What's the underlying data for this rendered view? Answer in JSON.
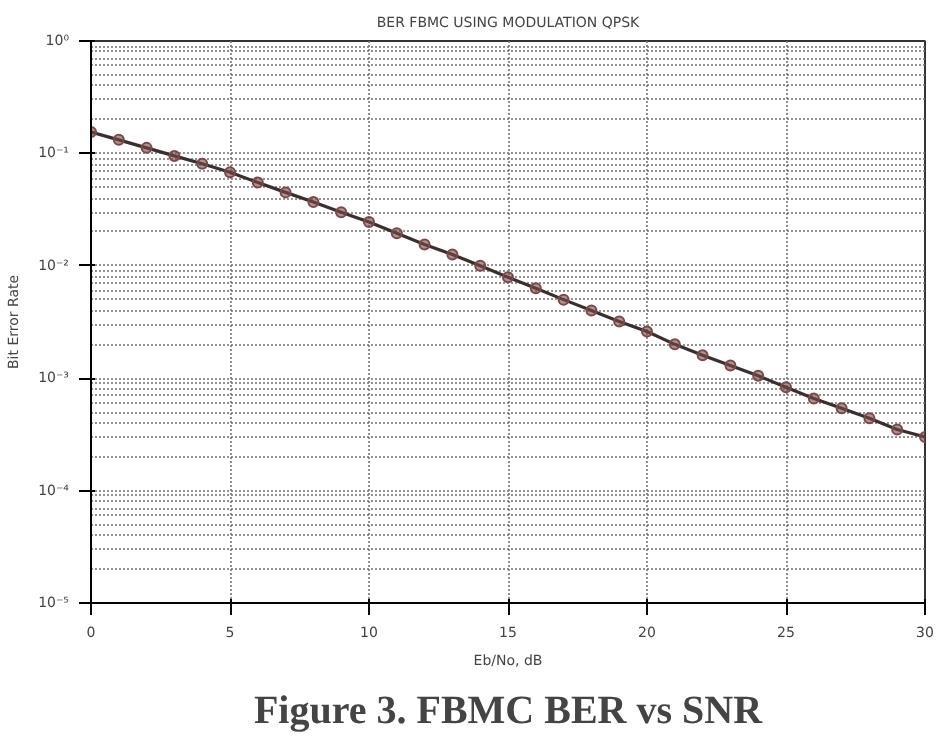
{
  "chart_data": {
    "type": "line",
    "title": "BER FBMC USING MODULATION QPSK",
    "xlabel": "Eb/No, dB",
    "ylabel": "Bit Error Rate",
    "annotations": [
      "Figure 3. FBMC BER vs SNR"
    ],
    "x": [
      0,
      1,
      2,
      3,
      4,
      5,
      6,
      7,
      8,
      9,
      10,
      11,
      12,
      13,
      14,
      15,
      16,
      17,
      18,
      19,
      20,
      21,
      22,
      23,
      24,
      25,
      26,
      27,
      28,
      29,
      30
    ],
    "series": [
      {
        "color": "#7a4a4a",
        "values": [
          0.155,
          0.132,
          0.112,
          0.095,
          0.081,
          0.068,
          0.055,
          0.045,
          0.037,
          0.03,
          0.0245,
          0.0195,
          0.0155,
          0.0126,
          0.01,
          0.0079,
          0.0063,
          0.005,
          0.004,
          0.0032,
          0.0026,
          0.002,
          0.0016,
          0.0013,
          0.00105,
          0.00083,
          0.00066,
          0.00054,
          0.00044,
          0.00035,
          0.0003
        ]
      }
    ],
    "log": "y",
    "xlim": [
      0,
      30
    ],
    "ylim": [
      1e-05,
      1
    ],
    "xticks": [
      0,
      5,
      10,
      15,
      20,
      25,
      30
    ],
    "yticks": [
      {
        "value": 1e-05,
        "label": "10⁻⁵"
      },
      {
        "value": 0.0001,
        "label": "10⁻⁴"
      },
      {
        "value": 0.001,
        "label": "10⁻³"
      },
      {
        "value": 0.01,
        "label": "10⁻²"
      },
      {
        "value": 0.1,
        "label": "10⁻¹"
      },
      {
        "value": 1,
        "label": "10⁰"
      }
    ],
    "grid": true,
    "marker": "circle",
    "line_style": "solid"
  }
}
